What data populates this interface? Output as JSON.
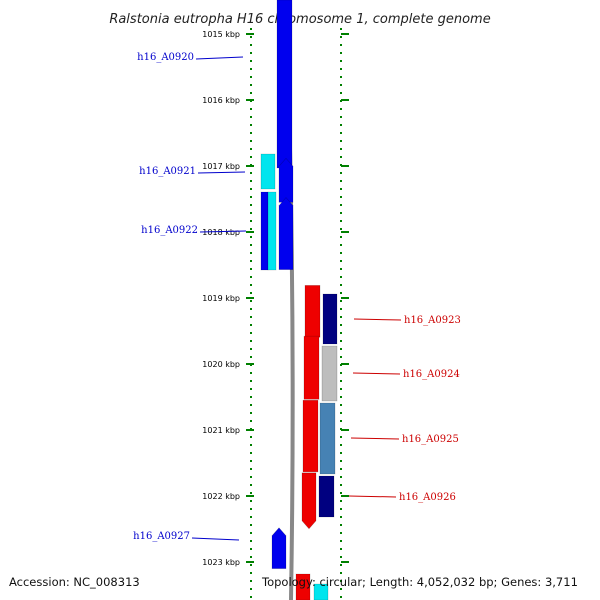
{
  "title": "Ralstonia eutropha H16 chromosome 1, complete genome",
  "accession": "Accession: NC_008313",
  "summary": "Topology: circular; Length: 4,052,032 bp; Genes: 3,711",
  "ruler_ticks": [
    {
      "label": "1015 kbp",
      "kbp": 1015
    },
    {
      "label": "1016 kbp",
      "kbp": 1016
    },
    {
      "label": "1017 kbp",
      "kbp": 1017
    },
    {
      "label": "1018 kbp",
      "kbp": 1018
    },
    {
      "label": "1019 kbp",
      "kbp": 1019
    },
    {
      "label": "1020 kbp",
      "kbp": 1020
    },
    {
      "label": "1021 kbp",
      "kbp": 1021
    },
    {
      "label": "1022 kbp",
      "kbp": 1022
    },
    {
      "label": "1023 kbp",
      "kbp": 1023
    }
  ],
  "genes": [
    {
      "name": "h16_A0920",
      "strand": "+",
      "start_kbp": 1014.6,
      "end_kbp": 1017.0,
      "color": "#0000ee",
      "label_color": "#0000cc",
      "arrow": false
    },
    {
      "name": "h16_A0921",
      "strand": "+",
      "start_kbp": 1017.05,
      "end_kbp": 1017.55,
      "color": "#0000ee",
      "label_color": "#0000cc",
      "arrow": true
    },
    {
      "name": "h16_A0922",
      "strand": "+",
      "start_kbp": 1017.6,
      "end_kbp": 1018.6,
      "color": "#0000ee",
      "label_color": "#0000cc",
      "arrow": true
    },
    {
      "name": "h16_A0923",
      "strand": "-",
      "start_kbp": 1018.9,
      "end_kbp": 1019.7,
      "color": "#ee0000",
      "label_color": "#cc0000",
      "arrow": false
    },
    {
      "name": "h16_A0924",
      "strand": "-",
      "start_kbp": 1019.7,
      "end_kbp": 1020.55,
      "color": "#ee0000",
      "label_color": "#cc0000",
      "arrow": false
    },
    {
      "name": "h16_A0925",
      "strand": "-",
      "start_kbp": 1020.55,
      "end_kbp": 1021.65,
      "color": "#ee0000",
      "label_color": "#cc0000",
      "arrow": false
    },
    {
      "name": "h16_A0926",
      "strand": "-",
      "start_kbp": 1021.65,
      "end_kbp": 1022.3,
      "color": "#ee0000",
      "label_color": "#cc0000",
      "arrow": true
    },
    {
      "name": "h16_A0927",
      "strand": "+",
      "start_kbp": 1022.3,
      "end_kbp": 1023.1,
      "color": "#0000ee",
      "label_color": "#0000cc",
      "arrow": true
    }
  ],
  "colors": {
    "plus_strand": "#0000ee",
    "minus_strand": "#ee0000",
    "tick": "#008000",
    "backbone": "#888888",
    "cyan": "#00e5ee",
    "navy": "#000080",
    "silver": "#bdbdbd",
    "steelblue": "#4682b4"
  }
}
